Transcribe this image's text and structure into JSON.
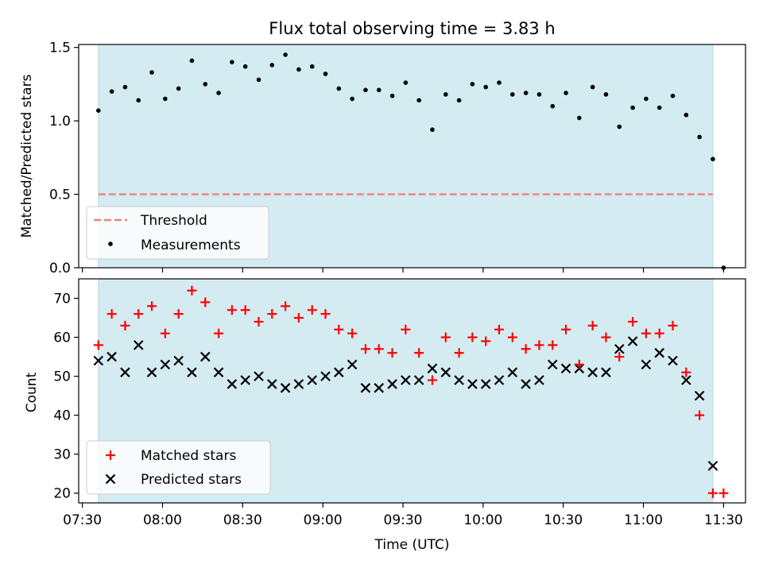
{
  "chart_data": [
    {
      "type": "scatter",
      "title": "Flux total observing time = 3.83 h",
      "ylabel": "Matched/Predicted stars",
      "ylim": [
        0,
        1.52
      ],
      "yticks": [
        "0.0",
        "0.5",
        "1.0",
        "1.5"
      ],
      "shaded_span": [
        "07:36",
        "11:26"
      ],
      "colors": {
        "shade": "#d4ebf1",
        "shade_edge": "#b7dbe4",
        "threshold": "#f08080",
        "points": "#000000"
      },
      "legend": {
        "location": "lower-left",
        "entries": [
          "Threshold",
          "Measurements"
        ]
      },
      "series": [
        {
          "name": "Threshold",
          "kind": "dashed-line",
          "x": [
            "07:36",
            "11:26"
          ],
          "y": [
            0.5,
            0.5
          ]
        },
        {
          "name": "Measurements",
          "kind": "dots",
          "x": [
            "07:36",
            "07:41",
            "07:46",
            "07:51",
            "07:56",
            "08:01",
            "08:06",
            "08:11",
            "08:16",
            "08:21",
            "08:26",
            "08:31",
            "08:36",
            "08:41",
            "08:46",
            "08:51",
            "08:56",
            "09:01",
            "09:06",
            "09:11",
            "09:16",
            "09:21",
            "09:26",
            "09:31",
            "09:36",
            "09:41",
            "09:46",
            "09:51",
            "09:56",
            "10:01",
            "10:06",
            "10:11",
            "10:16",
            "10:21",
            "10:26",
            "10:31",
            "10:36",
            "10:41",
            "10:46",
            "10:51",
            "10:56",
            "11:01",
            "11:06",
            "11:11",
            "11:16",
            "11:21",
            "11:26",
            "11:30"
          ],
          "y": [
            1.07,
            1.2,
            1.23,
            1.14,
            1.33,
            1.15,
            1.22,
            1.41,
            1.25,
            1.19,
            1.4,
            1.37,
            1.28,
            1.38,
            1.45,
            1.35,
            1.37,
            1.32,
            1.22,
            1.15,
            1.21,
            1.21,
            1.17,
            1.26,
            1.14,
            0.94,
            1.18,
            1.14,
            1.25,
            1.23,
            1.26,
            1.18,
            1.19,
            1.18,
            1.1,
            1.19,
            1.02,
            1.23,
            1.18,
            0.96,
            1.09,
            1.15,
            1.09,
            1.17,
            1.04,
            0.89,
            0.74,
            0.0
          ]
        }
      ]
    },
    {
      "type": "scatter",
      "xlabel": "Time (UTC)",
      "ylabel": "Count",
      "ylim": [
        17.5,
        75
      ],
      "yticks": [
        "20",
        "30",
        "40",
        "50",
        "60",
        "70"
      ],
      "xticks": [
        "07:30",
        "08:00",
        "08:30",
        "09:00",
        "09:30",
        "10:00",
        "10:30",
        "11:00",
        "11:30"
      ],
      "shaded_span": [
        "07:36",
        "11:26"
      ],
      "colors": {
        "shade": "#d4ebf1",
        "shade_edge": "#b7dbe4",
        "matched": "#ff0000",
        "predicted": "#000000"
      },
      "legend": {
        "location": "lower-left",
        "entries": [
          "Matched stars",
          "Predicted stars"
        ]
      },
      "series": [
        {
          "name": "Matched stars",
          "marker": "plus",
          "x": [
            "07:36",
            "07:41",
            "07:46",
            "07:51",
            "07:56",
            "08:01",
            "08:06",
            "08:11",
            "08:16",
            "08:21",
            "08:26",
            "08:31",
            "08:36",
            "08:41",
            "08:46",
            "08:51",
            "08:56",
            "09:01",
            "09:06",
            "09:11",
            "09:16",
            "09:21",
            "09:26",
            "09:31",
            "09:36",
            "09:41",
            "09:46",
            "09:51",
            "09:56",
            "10:01",
            "10:06",
            "10:11",
            "10:16",
            "10:21",
            "10:26",
            "10:31",
            "10:36",
            "10:41",
            "10:46",
            "10:51",
            "10:56",
            "11:01",
            "11:06",
            "11:11",
            "11:16",
            "11:21",
            "11:26",
            "11:30"
          ],
          "y": [
            58,
            66,
            63,
            66,
            68,
            61,
            66,
            72,
            69,
            61,
            67,
            67,
            64,
            66,
            68,
            65,
            67,
            66,
            62,
            61,
            57,
            57,
            56,
            62,
            56,
            49,
            60,
            56,
            60,
            59,
            62,
            60,
            57,
            58,
            58,
            62,
            53,
            63,
            60,
            55,
            64,
            61,
            61,
            63,
            51,
            40,
            20,
            20
          ]
        },
        {
          "name": "Predicted stars",
          "marker": "x",
          "x": [
            "07:36",
            "07:41",
            "07:46",
            "07:51",
            "07:56",
            "08:01",
            "08:06",
            "08:11",
            "08:16",
            "08:21",
            "08:26",
            "08:31",
            "08:36",
            "08:41",
            "08:46",
            "08:51",
            "08:56",
            "09:01",
            "09:06",
            "09:11",
            "09:16",
            "09:21",
            "09:26",
            "09:31",
            "09:36",
            "09:41",
            "09:46",
            "09:51",
            "09:56",
            "10:01",
            "10:06",
            "10:11",
            "10:16",
            "10:21",
            "10:26",
            "10:31",
            "10:36",
            "10:41",
            "10:46",
            "10:51",
            "10:56",
            "11:01",
            "11:06",
            "11:11",
            "11:16",
            "11:21",
            "11:26"
          ],
          "y": [
            54,
            55,
            51,
            58,
            51,
            53,
            54,
            51,
            55,
            51,
            48,
            49,
            50,
            48,
            47,
            48,
            49,
            50,
            51,
            53,
            47,
            47,
            48,
            49,
            49,
            52,
            51,
            49,
            48,
            48,
            49,
            51,
            48,
            49,
            53,
            52,
            52,
            51,
            51,
            57,
            59,
            53,
            56,
            54,
            49,
            45,
            27
          ]
        }
      ]
    }
  ]
}
